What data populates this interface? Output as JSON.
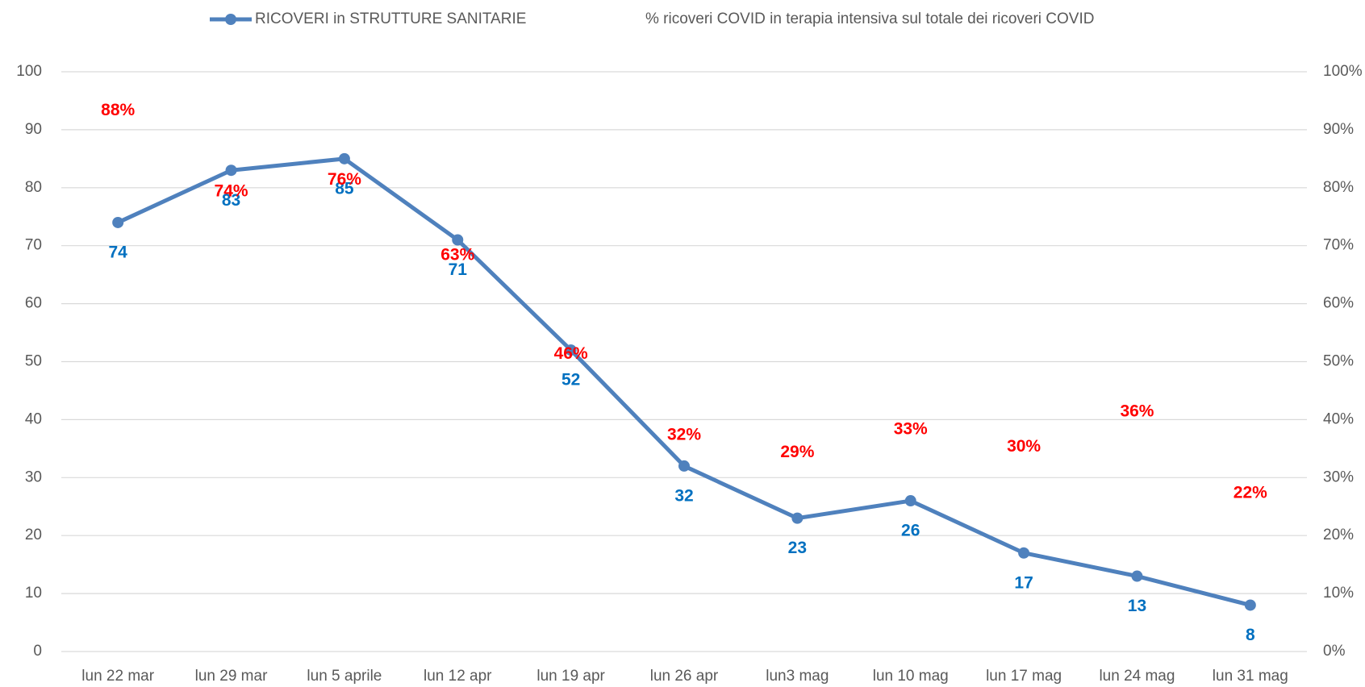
{
  "chart_data": {
    "type": "line",
    "categories": [
      "lun 22 mar",
      "lun 29 mar",
      "lun 5 aprile",
      "lun 12 apr",
      "lun 19 apr",
      "lun 26 apr",
      "lun3 mag",
      "lun 10 mag",
      "lun 17 mag",
      "lun 24 mag",
      "lun 31 mag"
    ],
    "series": [
      {
        "name": "RICOVERI in STRUTTURE SANITARIE",
        "color": "#4f81bd",
        "label_color": "#0070c0",
        "values": [
          74,
          83,
          85,
          71,
          52,
          32,
          23,
          26,
          17,
          13,
          8
        ]
      },
      {
        "name": "% ricoveri COVID in terapia intensiva sul totale dei ricoveri COVID",
        "color": "#ff0000",
        "axis": "y2",
        "values": [
          88,
          74,
          76,
          63,
          46,
          32,
          29,
          33,
          30,
          36,
          22
        ],
        "value_labels": [
          "88%",
          "74%",
          "76%",
          "63%",
          "46%",
          "32%",
          "29%",
          "33%",
          "30%",
          "36%",
          "22%"
        ]
      }
    ],
    "ylim": [
      0,
      100
    ],
    "yticks": [
      0,
      10,
      20,
      30,
      40,
      50,
      60,
      70,
      80,
      90,
      100
    ],
    "y2lim": [
      0,
      100
    ],
    "y2ticks": [
      {
        "value": 0,
        "label": "0%"
      },
      {
        "value": 10,
        "label": "10%"
      },
      {
        "value": 20,
        "label": "20%"
      },
      {
        "value": 30,
        "label": "30%"
      },
      {
        "value": 40,
        "label": "40%"
      },
      {
        "value": 50,
        "label": "50%"
      },
      {
        "value": 60,
        "label": "60%"
      },
      {
        "value": 70,
        "label": "70%"
      },
      {
        "value": 80,
        "label": "80%"
      },
      {
        "value": 90,
        "label": "90%"
      },
      {
        "value": 100,
        "label": "100%"
      }
    ],
    "grid": true,
    "legend": "top"
  }
}
